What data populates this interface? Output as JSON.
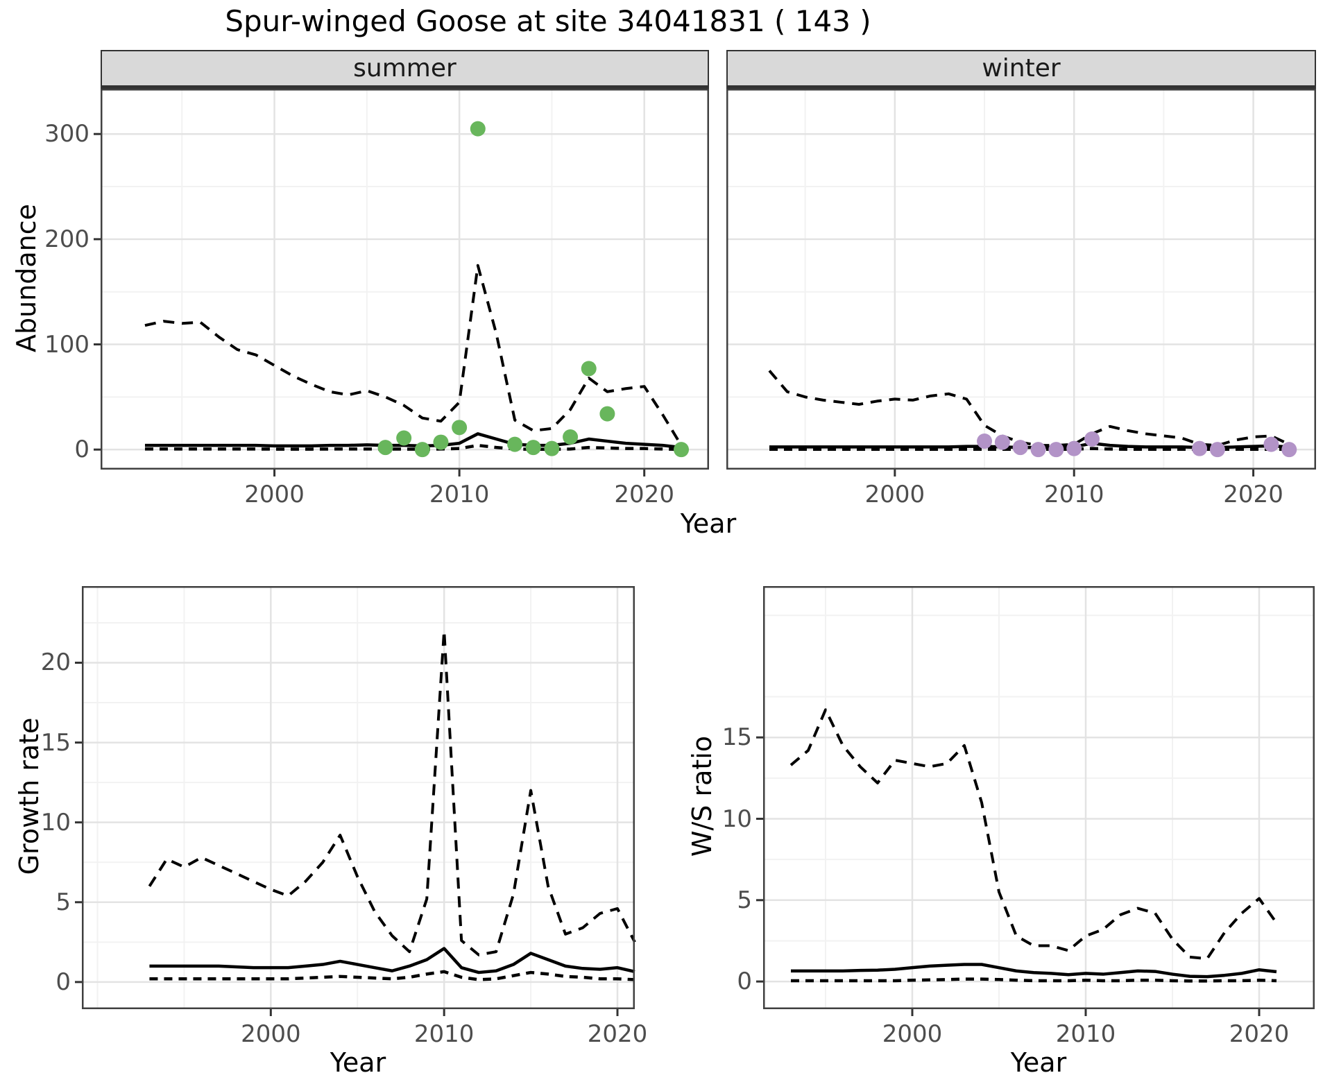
{
  "title": "Spur-winged Goose at site 34041831 ( 143 )",
  "axes": {
    "abundance_ylabel": "Abundance",
    "growth_ylabel": "Growth rate",
    "ws_ylabel": "W/S ratio",
    "top_xlabel": "Year",
    "growth_xlabel": "Year",
    "ws_xlabel": "Year"
  },
  "colors": {
    "summer_point": "#68b65c",
    "winter_point": "#b293c7",
    "line": "#000000",
    "grid_major": "#e3e3e3",
    "grid_minor": "#f2f2f2",
    "strip_bg": "#d9d9d9",
    "tick_text": "#4d4d4d",
    "panel_border": "#404040"
  },
  "chart_data": [
    {
      "type": "line",
      "title": "Abundance by year, faceted by season",
      "xlabel": "Year",
      "ylabel": "Abundance",
      "xticks": [
        2000,
        2010,
        2020
      ],
      "yticks": [
        0,
        100,
        200,
        300
      ],
      "xlim": [
        1990.6,
        2023.5
      ],
      "ylim": [
        -19,
        343
      ],
      "grid": true,
      "legend_position": "none",
      "x": [
        1993,
        1994,
        1995,
        1996,
        1997,
        1998,
        1999,
        2000,
        2001,
        2002,
        2003,
        2004,
        2005,
        2006,
        2007,
        2008,
        2009,
        2010,
        2011,
        2012,
        2013,
        2014,
        2015,
        2016,
        2017,
        2018,
        2019,
        2020,
        2021,
        2022
      ],
      "facets": [
        {
          "label": "summer",
          "series": [
            {
              "name": "upper_ci_dashed",
              "values": [
                118,
                122,
                120,
                121,
                107,
                95,
                90,
                80,
                70,
                62,
                55,
                52,
                56,
                50,
                42,
                30,
                27,
                45,
                175,
                110,
                28,
                18,
                20,
                38,
                68,
                55,
                58,
                60,
                33,
                4
              ]
            },
            {
              "name": "estimate_solid",
              "values": [
                4,
                4,
                4,
                4,
                4,
                4,
                4,
                3.5,
                3.5,
                3.5,
                4,
                4,
                4.5,
                4,
                4,
                3.5,
                4,
                6,
                15,
                10,
                5,
                4,
                4,
                6,
                10,
                8,
                6,
                5,
                4,
                2
              ]
            },
            {
              "name": "lower_ci_dashed",
              "values": [
                0.5,
                0.5,
                0.5,
                0.5,
                0.5,
                0.5,
                0.5,
                0.4,
                0.4,
                0.4,
                0.5,
                0.5,
                0.5,
                0.5,
                0.4,
                0.3,
                0.5,
                1,
                4,
                2,
                0.5,
                0.3,
                0.3,
                0.5,
                2,
                1.5,
                1,
                1,
                0.5,
                0.2
              ]
            }
          ],
          "observations": {
            "years": [
              2006,
              2007,
              2008,
              2009,
              2010,
              2011,
              2013,
              2014,
              2015,
              2016,
              2017,
              2018,
              2022
            ],
            "values": [
              2,
              11,
              0,
              7,
              21,
              305,
              5,
              2,
              1,
              12,
              77,
              34,
              0
            ],
            "point_color": "#68b65c"
          }
        },
        {
          "label": "winter",
          "series": [
            {
              "name": "upper_ci_dashed",
              "values": [
                75,
                55,
                50,
                47,
                45,
                43,
                46,
                48,
                47,
                51,
                53,
                48,
                23,
                13,
                7,
                4,
                4,
                5,
                15,
                22,
                18,
                15,
                13,
                11,
                5,
                4,
                9,
                12,
                13,
                5
              ]
            },
            {
              "name": "estimate_solid",
              "values": [
                2.5,
                2.5,
                2.5,
                2.5,
                2.5,
                2.5,
                2.5,
                2.5,
                2.5,
                2.5,
                2.5,
                3,
                3,
                2.5,
                2,
                2,
                2,
                2.5,
                6,
                4,
                3,
                2.5,
                2.5,
                2.5,
                2,
                2,
                2.5,
                3,
                3.5,
                2.5
              ]
            },
            {
              "name": "lower_ci_dashed",
              "values": [
                0.3,
                0.3,
                0.3,
                0.3,
                0.3,
                0.3,
                0.3,
                0.3,
                0.3,
                0.3,
                0.3,
                0.3,
                0.3,
                0.3,
                0.3,
                0.3,
                0.3,
                0.3,
                1,
                0.5,
                0.3,
                0.3,
                0.3,
                0.3,
                0.3,
                0.3,
                0.3,
                0.3,
                0.3,
                0.3
              ]
            }
          ],
          "observations": {
            "years": [
              2005,
              2006,
              2007,
              2008,
              2009,
              2010,
              2011,
              2017,
              2018,
              2021,
              2022
            ],
            "values": [
              8,
              7,
              2,
              0,
              0,
              1,
              10,
              1,
              0,
              5,
              0
            ],
            "point_color": "#b293c7"
          }
        }
      ]
    },
    {
      "type": "line",
      "title": "Growth rate by year",
      "xlabel": "Year",
      "ylabel": "Growth rate",
      "xticks": [
        2000,
        2010,
        2020
      ],
      "yticks": [
        0,
        5,
        10,
        15,
        20
      ],
      "xlim": [
        1989.1,
        2021.0
      ],
      "ylim": [
        -1.7,
        24.8
      ],
      "grid": true,
      "x": [
        1993,
        1994,
        1995,
        1996,
        1997,
        1998,
        1999,
        2000,
        2001,
        2002,
        2003,
        2004,
        2005,
        2006,
        2007,
        2008,
        2009,
        2010,
        2011,
        2012,
        2013,
        2014,
        2015,
        2016,
        2017,
        2018,
        2019,
        2020,
        2021
      ],
      "series": [
        {
          "name": "upper_ci_dashed",
          "values": [
            6.0,
            7.7,
            7.2,
            7.8,
            7.3,
            6.8,
            6.3,
            5.8,
            5.4,
            6.3,
            7.5,
            9.2,
            6.6,
            4.4,
            2.9,
            1.9,
            5.2,
            22.0,
            2.6,
            1.7,
            1.9,
            5.5,
            12.0,
            6.0,
            3.0,
            3.4,
            4.3,
            4.6,
            2.5
          ]
        },
        {
          "name": "estimate_solid",
          "values": [
            1.0,
            1.0,
            1.0,
            1.0,
            1.0,
            0.95,
            0.9,
            0.9,
            0.9,
            1.0,
            1.1,
            1.3,
            1.1,
            0.9,
            0.7,
            1.0,
            1.4,
            2.1,
            0.9,
            0.6,
            0.7,
            1.1,
            1.8,
            1.4,
            1.0,
            0.85,
            0.8,
            0.9,
            0.65
          ]
        },
        {
          "name": "lower_ci_dashed",
          "values": [
            0.2,
            0.2,
            0.2,
            0.2,
            0.2,
            0.2,
            0.2,
            0.2,
            0.2,
            0.25,
            0.3,
            0.35,
            0.3,
            0.25,
            0.2,
            0.3,
            0.5,
            0.65,
            0.3,
            0.15,
            0.2,
            0.4,
            0.6,
            0.5,
            0.35,
            0.3,
            0.2,
            0.2,
            0.15
          ]
        }
      ]
    },
    {
      "type": "line",
      "title": "Winter/Summer ratio by year",
      "xlabel": "Year",
      "ylabel": "W/S ratio",
      "xticks": [
        2000,
        2010,
        2020
      ],
      "yticks": [
        0,
        5,
        10,
        15
      ],
      "xlim": [
        1991.4,
        2023.2
      ],
      "ylim": [
        -1.7,
        24.3
      ],
      "grid": true,
      "x": [
        1993,
        1994,
        1995,
        1996,
        1997,
        1998,
        1999,
        2000,
        2001,
        2002,
        2003,
        2004,
        2005,
        2006,
        2007,
        2008,
        2009,
        2010,
        2011,
        2012,
        2013,
        2014,
        2015,
        2016,
        2017,
        2018,
        2019,
        2020,
        2021
      ],
      "series": [
        {
          "name": "upper_ci_dashed",
          "values": [
            13.3,
            14.2,
            16.7,
            14.5,
            13.2,
            12.2,
            13.6,
            13.4,
            13.2,
            13.4,
            14.5,
            11.0,
            5.5,
            2.8,
            2.2,
            2.2,
            1.9,
            2.8,
            3.2,
            4.1,
            4.5,
            4.2,
            2.6,
            1.5,
            1.4,
            3.0,
            4.2,
            5.1,
            3.6
          ]
        },
        {
          "name": "estimate_solid",
          "values": [
            0.65,
            0.65,
            0.65,
            0.65,
            0.68,
            0.7,
            0.75,
            0.85,
            0.95,
            1.0,
            1.05,
            1.05,
            0.85,
            0.65,
            0.55,
            0.5,
            0.42,
            0.5,
            0.45,
            0.55,
            0.65,
            0.62,
            0.45,
            0.32,
            0.3,
            0.38,
            0.5,
            0.72,
            0.6
          ]
        },
        {
          "name": "lower_ci_dashed",
          "values": [
            0.05,
            0.05,
            0.05,
            0.05,
            0.05,
            0.05,
            0.05,
            0.08,
            0.1,
            0.12,
            0.15,
            0.15,
            0.12,
            0.08,
            0.05,
            0.05,
            0.05,
            0.08,
            0.05,
            0.05,
            0.08,
            0.08,
            0.05,
            0.03,
            0.03,
            0.05,
            0.05,
            0.08,
            0.05
          ]
        }
      ]
    }
  ]
}
